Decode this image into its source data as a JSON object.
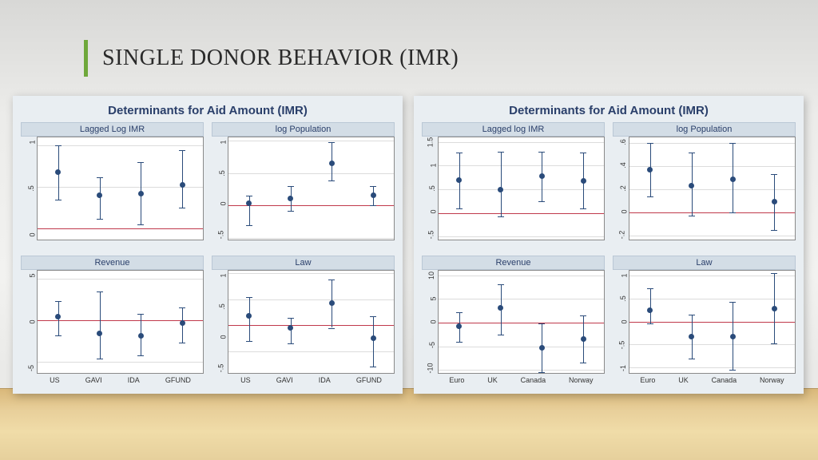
{
  "slide_title": "SINGLE DONOR BEHAVIOR (IMR)",
  "title_bar_color": "#6fa83b",
  "figures": [
    {
      "title": "Determinants for Aid Amount (IMR)",
      "x_categories": [
        "US",
        "GAVI",
        "IDA",
        "GFUND"
      ],
      "panels": [
        {
          "title": "Lagged Log IMR",
          "ymin": -0.15,
          "ymax": 1.1,
          "yticks": [
            0,
            0.5,
            1
          ],
          "points": [
            {
              "y": 0.68,
              "lo": 0.35,
              "hi": 1.0
            },
            {
              "y": 0.4,
              "lo": 0.12,
              "hi": 0.62
            },
            {
              "y": 0.42,
              "lo": 0.05,
              "hi": 0.8
            },
            {
              "y": 0.53,
              "lo": 0.25,
              "hi": 0.95
            }
          ]
        },
        {
          "title": "log Population",
          "ymin": -0.55,
          "ymax": 1.05,
          "yticks": [
            -0.5,
            0,
            0.5,
            1
          ],
          "points": [
            {
              "y": 0.03,
              "lo": -0.3,
              "hi": 0.15
            },
            {
              "y": 0.11,
              "lo": -0.08,
              "hi": 0.3
            },
            {
              "y": 0.65,
              "lo": 0.38,
              "hi": 0.98
            },
            {
              "y": 0.16,
              "lo": 0.0,
              "hi": 0.3
            }
          ]
        },
        {
          "title": "Revenue",
          "ymin": -6.5,
          "ymax": 6.0,
          "yticks": [
            -5,
            0,
            5
          ],
          "points": [
            {
              "y": 0.5,
              "lo": -1.8,
              "hi": 2.3
            },
            {
              "y": -1.5,
              "lo": -4.6,
              "hi": 3.5
            },
            {
              "y": -1.8,
              "lo": -4.2,
              "hi": 0.8
            },
            {
              "y": -0.3,
              "lo": -2.7,
              "hi": 1.6
            }
          ]
        },
        {
          "title": "Law",
          "ymin": -0.95,
          "ymax": 1.05,
          "yticks": [
            -0.5,
            0,
            0.5,
            1
          ],
          "points": [
            {
              "y": 0.18,
              "lo": -0.3,
              "hi": 0.55
            },
            {
              "y": -0.05,
              "lo": -0.35,
              "hi": 0.15
            },
            {
              "y": 0.42,
              "lo": -0.05,
              "hi": 0.88
            },
            {
              "y": -0.25,
              "lo": -0.8,
              "hi": 0.18
            }
          ]
        }
      ]
    },
    {
      "title": "Determinants for Aid Amount (IMR)",
      "x_categories": [
        "Euro",
        "UK",
        "Canada",
        "Norway"
      ],
      "panels": [
        {
          "title": "Lagged log IMR",
          "ymin": -0.6,
          "ymax": 1.6,
          "yticks": [
            -0.5,
            0,
            0.5,
            1,
            1.5
          ],
          "points": [
            {
              "y": 0.7,
              "lo": 0.1,
              "hi": 1.28
            },
            {
              "y": 0.5,
              "lo": -0.08,
              "hi": 1.3
            },
            {
              "y": 0.78,
              "lo": 0.25,
              "hi": 1.3
            },
            {
              "y": 0.68,
              "lo": 0.1,
              "hi": 1.28
            }
          ]
        },
        {
          "title": "log Population",
          "ymin": -0.25,
          "ymax": 0.65,
          "yticks": [
            -0.2,
            0,
            0.2,
            0.4,
            0.6
          ],
          "points": [
            {
              "y": 0.37,
              "lo": 0.14,
              "hi": 0.6
            },
            {
              "y": 0.23,
              "lo": -0.03,
              "hi": 0.52
            },
            {
              "y": 0.29,
              "lo": 0.0,
              "hi": 0.6
            },
            {
              "y": 0.09,
              "lo": -0.15,
              "hi": 0.33
            }
          ]
        },
        {
          "title": "Revenue",
          "ymin": -11,
          "ymax": 11,
          "yticks": [
            -10,
            -5,
            0,
            5,
            10
          ],
          "points": [
            {
              "y": -0.8,
              "lo": -4.0,
              "hi": 2.2
            },
            {
              "y": 3.2,
              "lo": -2.5,
              "hi": 8.2
            },
            {
              "y": -5.4,
              "lo": -10.5,
              "hi": -0.2
            },
            {
              "y": -3.5,
              "lo": -8.5,
              "hi": 1.5
            }
          ]
        },
        {
          "title": "Law",
          "ymin": -1.15,
          "ymax": 1.1,
          "yticks": [
            -1,
            -0.5,
            0,
            0.5,
            1
          ],
          "points": [
            {
              "y": 0.25,
              "lo": -0.05,
              "hi": 0.72
            },
            {
              "y": -0.32,
              "lo": -0.8,
              "hi": 0.15
            },
            {
              "y": -0.32,
              "lo": -1.05,
              "hi": 0.42
            },
            {
              "y": 0.28,
              "lo": -0.48,
              "hi": 1.05
            }
          ]
        }
      ]
    }
  ],
  "colors": {
    "panel_bg": "#e9eef2",
    "panel_title_bg": "#d3dde6",
    "panel_title_fg": "#2a3f6a",
    "plot_bg": "#ffffff",
    "plot_border": "#8a8a8a",
    "gridline": "#dcdcdc",
    "zero_line": "#c0394b",
    "marker": "#2a4b7a"
  }
}
